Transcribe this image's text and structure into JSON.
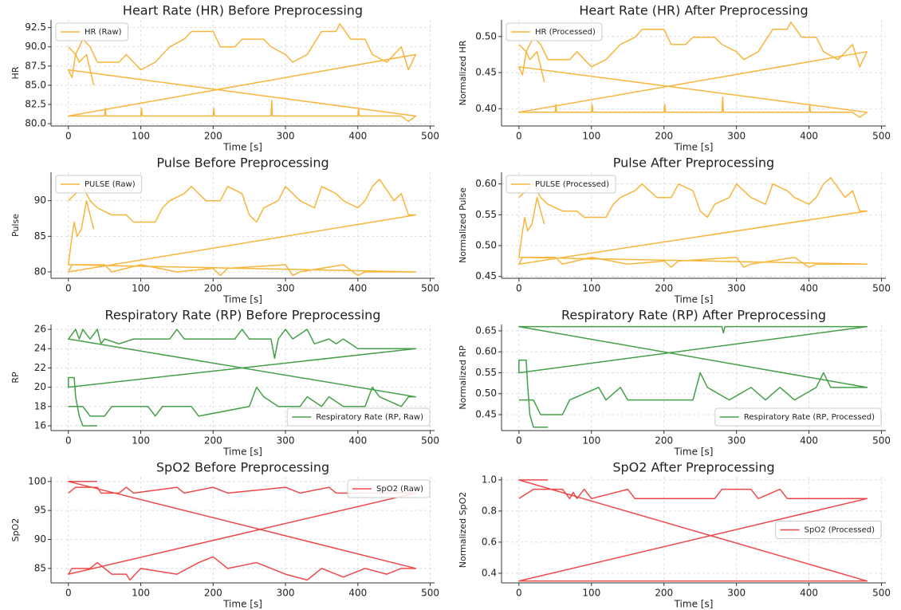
{
  "chart_data": [
    {
      "type": "line",
      "title": "Heart Rate (HR) Before Preprocessing",
      "xlabel": "Time [s]",
      "ylabel": "HR",
      "legend": "upper left",
      "grid": true,
      "xlim": [
        -24,
        506
      ],
      "ylim": [
        79.7,
        93.5
      ],
      "xticks": [
        0,
        100,
        200,
        300,
        400,
        500
      ],
      "yticks": [
        {
          "value": 80,
          "label": "80.0"
        },
        82.5,
        {
          "value": 85,
          "label": "85.0"
        },
        87.5,
        {
          "value": 90,
          "label": "90.0"
        },
        92.5
      ],
      "x": [
        0,
        10,
        20,
        30,
        40,
        70,
        80,
        100,
        120,
        140,
        160,
        170,
        200,
        210,
        230,
        240,
        270,
        280,
        300,
        310,
        330,
        350,
        370,
        375,
        390,
        410,
        420,
        440,
        460,
        470,
        480,
        0,
        50,
        51,
        52,
        100,
        101,
        102,
        200,
        201,
        202,
        280,
        281,
        282,
        400,
        401,
        402,
        460,
        470,
        480,
        0,
        5,
        10,
        15,
        25,
        35
      ],
      "series": [
        {
          "name": "HR (Raw)",
          "color": "#f7b53b",
          "values": [
            90,
            89,
            91,
            90,
            88,
            88,
            89,
            87,
            88,
            90,
            91,
            92,
            92,
            90,
            90,
            91,
            91,
            90,
            89,
            88,
            89,
            92,
            92,
            93,
            91,
            91,
            89,
            88,
            90,
            87,
            89,
            81,
            81,
            82,
            81,
            81,
            82,
            81,
            81,
            82,
            81,
            81,
            83,
            81,
            81,
            82,
            81,
            81,
            80.3,
            81,
            87,
            86,
            89,
            88,
            89,
            85
          ]
        }
      ]
    },
    {
      "type": "line",
      "title": "Heart Rate (HR) After Preprocessing",
      "xlabel": "Time [s]",
      "ylabel": "Normalized HR",
      "legend": "upper left",
      "grid": true,
      "xlim": [
        -24,
        506
      ],
      "ylim": [
        0.376,
        0.523
      ],
      "xticks": [
        0,
        100,
        200,
        300,
        400,
        500
      ],
      "yticks": [
        {
          "value": 0.4,
          "label": "0.40"
        },
        0.45,
        {
          "value": 0.5,
          "label": "0.50"
        }
      ],
      "x": [
        0,
        10,
        20,
        30,
        40,
        70,
        80,
        100,
        120,
        140,
        160,
        170,
        200,
        210,
        230,
        240,
        270,
        280,
        300,
        310,
        330,
        350,
        370,
        375,
        390,
        410,
        420,
        440,
        460,
        470,
        480,
        0,
        50,
        51,
        52,
        100,
        101,
        102,
        200,
        201,
        202,
        280,
        281,
        282,
        400,
        401,
        402,
        460,
        470,
        480,
        0,
        5,
        10,
        15,
        25,
        35
      ],
      "series": [
        {
          "name": "HR (Processed)",
          "color": "#f7b53b",
          "values": [
            0.489,
            0.479,
            0.499,
            0.489,
            0.468,
            0.468,
            0.479,
            0.458,
            0.468,
            0.489,
            0.499,
            0.51,
            0.51,
            0.489,
            0.489,
            0.499,
            0.499,
            0.489,
            0.479,
            0.468,
            0.479,
            0.51,
            0.51,
            0.52,
            0.499,
            0.499,
            0.479,
            0.468,
            0.489,
            0.458,
            0.479,
            0.395,
            0.395,
            0.406,
            0.395,
            0.395,
            0.406,
            0.395,
            0.395,
            0.406,
            0.395,
            0.395,
            0.416,
            0.395,
            0.395,
            0.406,
            0.395,
            0.395,
            0.388,
            0.395,
            0.458,
            0.447,
            0.479,
            0.468,
            0.479,
            0.437
          ]
        }
      ]
    },
    {
      "type": "line",
      "title": "Pulse Before Preprocessing",
      "xlabel": "Time [s]",
      "ylabel": "Pulse",
      "legend": "upper left",
      "grid": true,
      "xlim": [
        -24,
        506
      ],
      "ylim": [
        79.1,
        94
      ],
      "xticks": [
        0,
        100,
        200,
        300,
        400,
        500
      ],
      "yticks": [
        80,
        85,
        90
      ],
      "x": [
        0,
        10,
        20,
        30,
        40,
        60,
        80,
        90,
        120,
        130,
        140,
        160,
        170,
        190,
        210,
        220,
        240,
        250,
        260,
        270,
        290,
        300,
        320,
        340,
        350,
        370,
        380,
        400,
        410,
        420,
        430,
        450,
        460,
        470,
        480,
        0,
        5,
        50,
        60,
        100,
        150,
        200,
        210,
        220,
        300,
        310,
        320,
        380,
        400,
        410,
        480,
        0,
        5,
        8,
        12,
        18,
        25,
        30,
        35
      ],
      "series": [
        {
          "name": "PULSE (Raw)",
          "color": "#f7b53b",
          "values": [
            90,
            91,
            92,
            90,
            89,
            88,
            88,
            87,
            87,
            89,
            90,
            91,
            92,
            90,
            90,
            92,
            91,
            88,
            87,
            89,
            90,
            92,
            90,
            89,
            92,
            91,
            90,
            89,
            90,
            92,
            93,
            90,
            91,
            88,
            88,
            80,
            81,
            81,
            80,
            81,
            80,
            80.5,
            79.5,
            80.5,
            81,
            79.5,
            80,
            81,
            79.5,
            80,
            80,
            81,
            85,
            87,
            85,
            86,
            90,
            88,
            86
          ]
        }
      ]
    },
    {
      "type": "line",
      "title": "Pulse After Preprocessing",
      "xlabel": "Time [s]",
      "ylabel": "Normalized Pulse",
      "legend": "upper left",
      "grid": true,
      "xlim": [
        -24,
        506
      ],
      "ylim": [
        0.447,
        0.619
      ],
      "xticks": [
        0,
        100,
        200,
        300,
        400,
        500
      ],
      "yticks": [
        0.45,
        {
          "value": 0.5,
          "label": "0.50"
        },
        0.55,
        {
          "value": 0.6,
          "label": "0.60"
        }
      ],
      "x": [
        0,
        10,
        20,
        30,
        40,
        60,
        80,
        90,
        120,
        130,
        140,
        160,
        170,
        190,
        210,
        220,
        240,
        250,
        260,
        270,
        290,
        300,
        320,
        340,
        350,
        370,
        380,
        400,
        410,
        420,
        430,
        450,
        460,
        470,
        480,
        0,
        5,
        50,
        60,
        100,
        150,
        200,
        210,
        220,
        300,
        310,
        320,
        380,
        400,
        410,
        480,
        0,
        5,
        8,
        12,
        18,
        25,
        30,
        35
      ],
      "series": [
        {
          "name": "PULSE (Processed)",
          "color": "#f7b53b",
          "values": [
            0.578,
            0.589,
            0.6,
            0.578,
            0.567,
            0.556,
            0.556,
            0.546,
            0.546,
            0.567,
            0.578,
            0.589,
            0.6,
            0.578,
            0.578,
            0.6,
            0.589,
            0.556,
            0.546,
            0.567,
            0.578,
            0.6,
            0.578,
            0.567,
            0.6,
            0.589,
            0.578,
            0.567,
            0.578,
            0.6,
            0.61,
            0.578,
            0.589,
            0.556,
            0.556,
            0.47,
            0.481,
            0.481,
            0.47,
            0.481,
            0.47,
            0.475,
            0.465,
            0.475,
            0.481,
            0.465,
            0.47,
            0.481,
            0.465,
            0.47,
            0.47,
            0.481,
            0.524,
            0.546,
            0.524,
            0.535,
            0.578,
            0.556,
            0.535
          ]
        }
      ]
    },
    {
      "type": "line",
      "title": "Respiratory Rate (RP) Before Preprocessing",
      "xlabel": "Time [s]",
      "ylabel": "RP",
      "legend": "lower right",
      "grid": true,
      "xlim": [
        -24,
        506
      ],
      "ylim": [
        15.5,
        26.5
      ],
      "xticks": [
        0,
        100,
        200,
        300,
        400,
        500
      ],
      "yticks": [
        16,
        18,
        20,
        22,
        24,
        26
      ],
      "x": [
        0,
        20,
        30,
        50,
        60,
        110,
        120,
        130,
        170,
        180,
        250,
        260,
        270,
        290,
        320,
        330,
        350,
        360,
        380,
        410,
        420,
        430,
        460,
        470,
        480,
        0,
        10,
        15,
        20,
        30,
        40,
        45,
        50,
        70,
        90,
        140,
        150,
        160,
        230,
        240,
        250,
        280,
        285,
        290,
        300,
        310,
        330,
        340,
        360,
        370,
        380,
        400,
        480,
        0,
        0,
        8,
        10,
        15,
        20,
        40
      ],
      "series": [
        {
          "name": "Respiratory Rate (RP, Raw)",
          "color": "#43a047",
          "values": [
            18,
            18,
            17,
            17,
            18,
            18,
            17,
            18,
            18,
            17,
            18,
            20,
            19,
            18,
            18,
            19,
            18,
            19,
            18,
            18,
            20,
            19,
            18,
            19,
            19,
            25,
            26,
            25,
            26,
            25,
            26,
            24.5,
            25,
            24.5,
            25,
            25,
            26,
            25,
            25,
            26,
            25,
            25,
            23,
            25,
            26,
            25,
            26,
            24.5,
            25,
            24.5,
            25,
            24,
            24,
            20,
            21,
            21,
            19,
            17,
            16,
            16
          ]
        }
      ]
    },
    {
      "type": "line",
      "title": "Respiratory Rate (RP) After Preprocessing",
      "xlabel": "Time [s]",
      "ylabel": "Normalized RP",
      "legend": "lower right",
      "grid": true,
      "xlim": [
        -24,
        506
      ],
      "ylim": [
        0.412,
        0.665
      ],
      "xticks": [
        0,
        100,
        200,
        300,
        400,
        500
      ],
      "yticks": [
        0.45,
        {
          "value": 0.5,
          "label": "0.50"
        },
        0.55,
        {
          "value": 0.6,
          "label": "0.60"
        },
        0.65
      ],
      "x": [
        0,
        20,
        30,
        60,
        70,
        110,
        120,
        140,
        150,
        240,
        250,
        260,
        290,
        320,
        340,
        360,
        380,
        410,
        420,
        430,
        480,
        0,
        280,
        282,
        284,
        480,
        0,
        0,
        10,
        12,
        15,
        20,
        40
      ],
      "series": [
        {
          "name": "Respiratory Rate (RP, Processed)",
          "color": "#43a047",
          "values": [
            0.485,
            0.485,
            0.45,
            0.45,
            0.485,
            0.515,
            0.485,
            0.515,
            0.485,
            0.485,
            0.55,
            0.515,
            0.485,
            0.515,
            0.485,
            0.515,
            0.485,
            0.515,
            0.55,
            0.515,
            0.515,
            0.66,
            0.66,
            0.645,
            0.66,
            0.66,
            0.55,
            0.58,
            0.58,
            0.52,
            0.45,
            0.42,
            0.42
          ]
        }
      ]
    },
    {
      "type": "line",
      "title": "SpO2 Before Preprocessing",
      "xlabel": "Time [s]",
      "ylabel": "SpO2",
      "legend": "upper right",
      "grid": true,
      "xlim": [
        -24,
        506
      ],
      "ylim": [
        82.5,
        100.8
      ],
      "xticks": [
        0,
        100,
        200,
        300,
        400,
        500
      ],
      "yticks": [
        85,
        90,
        95,
        100
      ],
      "x": [
        0,
        10,
        40,
        45,
        70,
        80,
        90,
        150,
        160,
        200,
        220,
        300,
        320,
        360,
        370,
        480,
        0,
        5,
        30,
        40,
        60,
        80,
        85,
        100,
        150,
        180,
        200,
        220,
        260,
        300,
        330,
        350,
        380,
        410,
        440,
        460,
        480,
        0,
        40
      ],
      "series": [
        {
          "name": "SpO2 (Raw)",
          "color": "#f04848",
          "values": [
            98,
            99,
            99,
            98,
            98,
            99,
            98,
            99,
            98,
            99,
            98,
            99,
            98,
            99,
            98,
            98,
            84,
            85,
            85,
            86,
            84,
            84,
            83,
            85,
            84,
            86,
            87,
            85,
            86,
            84,
            83,
            85,
            83.5,
            85,
            84,
            85,
            85,
            100,
            100
          ]
        }
      ]
    },
    {
      "type": "line",
      "title": "SpO2 After Preprocessing",
      "xlabel": "Time [s]",
      "ylabel": "Normalized SpO2",
      "legend": "center right",
      "grid": true,
      "xlim": [
        -24,
        506
      ],
      "ylim": [
        0.338,
        1.02
      ],
      "xticks": [
        0,
        100,
        200,
        300,
        400,
        500
      ],
      "yticks": [
        0.4,
        0.6,
        0.8,
        {
          "value": 1.0,
          "label": "1.0"
        }
      ],
      "x": [
        0,
        20,
        60,
        70,
        75,
        80,
        90,
        100,
        150,
        160,
        270,
        280,
        320,
        330,
        360,
        370,
        480,
        0,
        480,
        0,
        40
      ],
      "series": [
        {
          "name": "SpO2 (Processed)",
          "color": "#f04848",
          "values": [
            0.88,
            0.94,
            0.94,
            0.88,
            0.92,
            0.88,
            0.94,
            0.88,
            0.94,
            0.88,
            0.88,
            0.94,
            0.94,
            0.88,
            0.94,
            0.88,
            0.88,
            0.35,
            0.35,
            1.0,
            1.0
          ]
        }
      ]
    }
  ]
}
